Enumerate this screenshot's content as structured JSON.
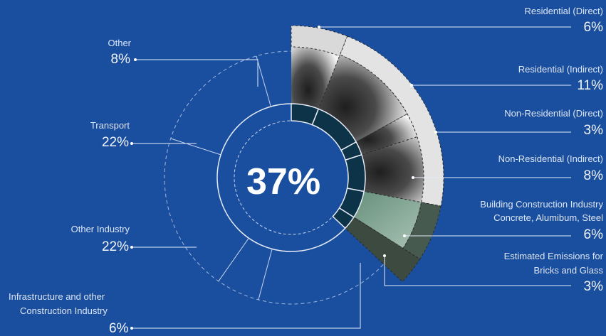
{
  "chart_data": {
    "type": "pie",
    "center_label": "37%",
    "building_segments": [
      {
        "name": "Residential (Direct)",
        "value": 6,
        "display": "6%"
      },
      {
        "name": "Residential (Indirect)",
        "value": 11,
        "display": "11%"
      },
      {
        "name": "Non-Residential (Direct)",
        "value": 3,
        "display": "3%"
      },
      {
        "name": "Non-Residential (Indirect)",
        "value": 8,
        "display": "8%"
      },
      {
        "name": "Building Construction Industry",
        "name_line2": "Concrete, Alumibum, Steel",
        "value": 6,
        "display": "6%"
      },
      {
        "name": "Estimated Emissions for",
        "name_line2": "Bricks and Glass",
        "value": 3,
        "display": "3%"
      }
    ],
    "other_segments": [
      {
        "name": "Other",
        "value": 8,
        "display": "8%"
      },
      {
        "name": "Transport",
        "value": 22,
        "display": "22%"
      },
      {
        "name": "Other Industry",
        "value": 22,
        "display": "22%"
      },
      {
        "name": "Infrastructure and other",
        "name_line2": "Construction Industry",
        "value": 6,
        "display": "6%"
      }
    ]
  }
}
